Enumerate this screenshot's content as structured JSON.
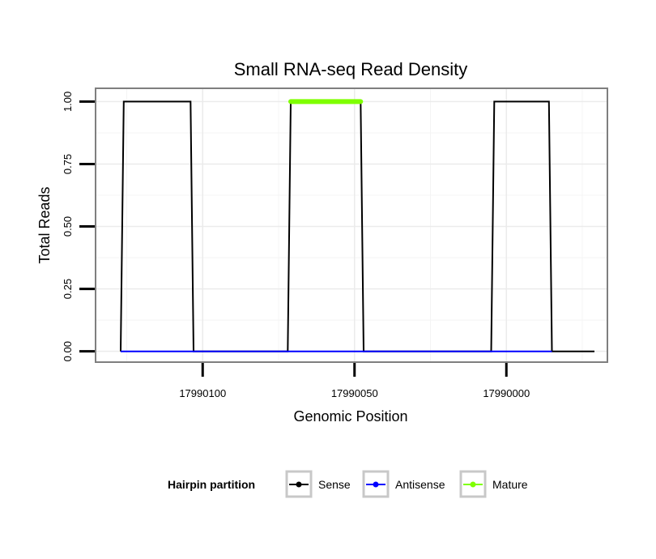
{
  "chart_data": {
    "type": "line",
    "title": "Small RNA-seq Read Density",
    "xlabel": "Genomic Position",
    "ylabel": "Total Reads",
    "x_reversed": true,
    "xlim": [
      17990135,
      17989967
    ],
    "ylim": [
      -0.04,
      1.05
    ],
    "x_ticks": [
      17990100,
      17990050,
      17990000
    ],
    "x_tick_labels": [
      "17990100",
      "17990050",
      "17990000"
    ],
    "y_ticks": [
      0,
      0.25,
      0.5,
      0.75,
      1
    ],
    "y_tick_labels": [
      "0.00",
      "0.25",
      "0.50",
      "0.75",
      "1.00"
    ],
    "grid": true,
    "legend": {
      "title": "Hairpin partition",
      "position": "bottom",
      "entries": [
        {
          "label": "Sense",
          "color": "#000000"
        },
        {
          "label": "Antisense",
          "color": "#0000ff"
        },
        {
          "label": "Mature",
          "color": "#7fff00"
        }
      ]
    },
    "series": [
      {
        "name": "Sense",
        "color": "#000000",
        "x": [
          17990127,
          17990126,
          17990104,
          17990103,
          17990072,
          17990071,
          17990048,
          17990047,
          17990005,
          17990004,
          17989986,
          17989985,
          17989971
        ],
        "y": [
          0,
          1,
          1,
          0,
          0,
          1,
          1,
          0,
          0,
          1,
          1,
          0,
          0
        ]
      },
      {
        "name": "Antisense",
        "color": "#0000ff",
        "x": [
          17990127,
          17989985
        ],
        "y": [
          0,
          0
        ]
      },
      {
        "name": "Mature",
        "color": "#7fff00",
        "x": [
          17990071,
          17990048
        ],
        "y": [
          1,
          1
        ]
      }
    ]
  }
}
